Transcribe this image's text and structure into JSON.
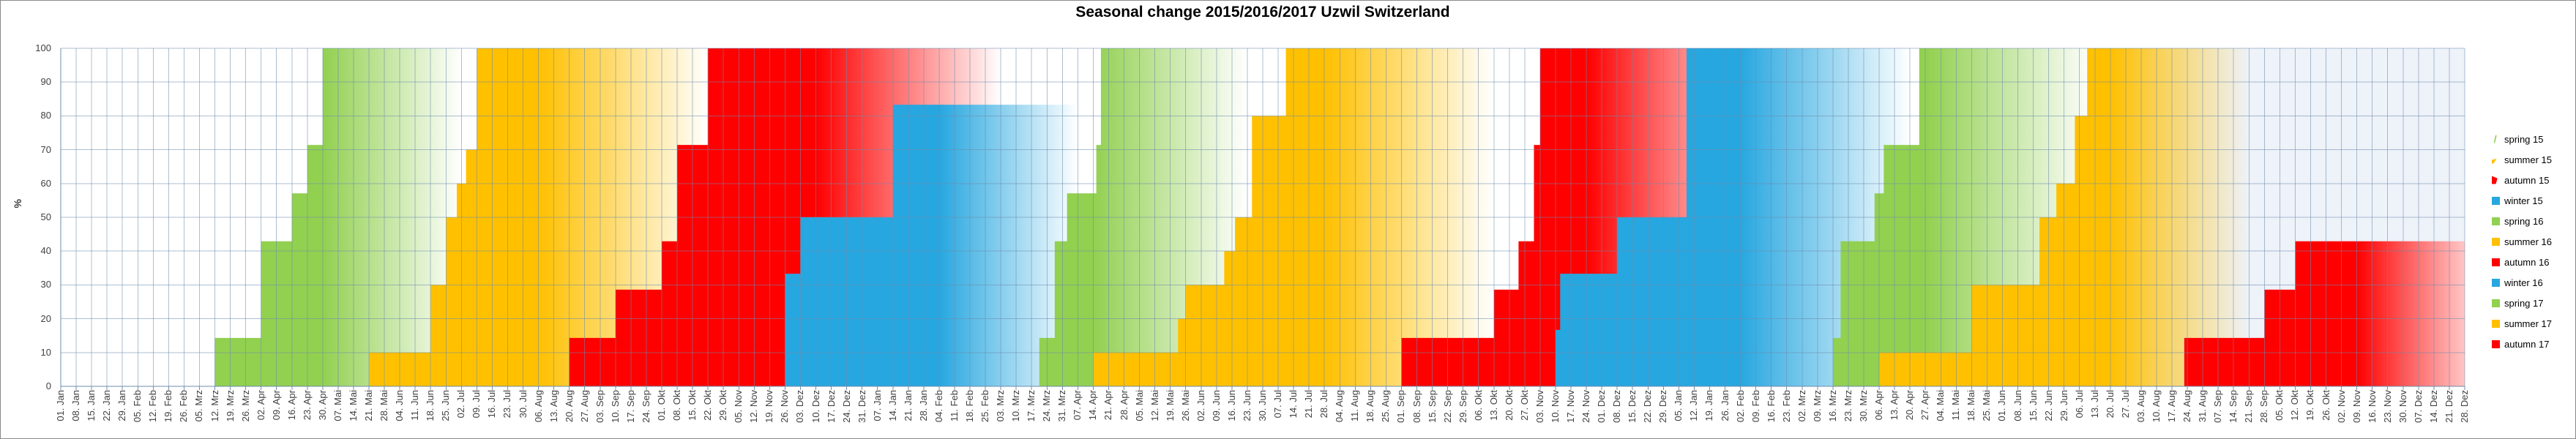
{
  "title": "Seasonal change 2015/2016/2017 Uzwil Switzerland",
  "y_axis": {
    "label": "%",
    "ticks": [
      0,
      10,
      20,
      30,
      40,
      50,
      60,
      70,
      80,
      90,
      100
    ]
  },
  "legend": {
    "items": [
      "spring 15",
      "summer 15",
      "autumn 15",
      "winter 15",
      "spring 16",
      "summer 16",
      "autumn 16",
      "winter 16",
      "spring 17",
      "summer 17",
      "autumn 17"
    ]
  },
  "colors": {
    "spring": "#92D050",
    "summer": "#FFC000",
    "autumn": "#FF0000",
    "winter": "#27A7E0",
    "gridline": "rgba(108,138,172,0.55)",
    "axis": "rgba(108,138,172,0.95)",
    "text": "#3f3f3f",
    "frame": "#8a8a8a"
  },
  "chart_data": {
    "type": "area",
    "title": "Seasonal change 2015/2016/2017 Uzwil Switzerland",
    "xlabel": "",
    "ylabel": "%",
    "ylim": [
      0,
      100
    ],
    "ytick_step": 10,
    "grid": "on",
    "legend_position": "right",
    "x_note": "weekly categories, 01.Jan.2015 - 28.Dez.2017; each season series rises in steps from 0 to its max % and its fill fades from solid colour to white over the following weeks; later seasons are painted over earlier ones",
    "x_labels": [
      "01. Jan",
      "08. Jan",
      "15. Jan",
      "22. Jan",
      "29. Jan",
      "05. Feb",
      "12. Feb",
      "19. Feb",
      "26. Feb",
      "05. Mrz",
      "12. Mrz",
      "19. Mrz",
      "26. Mrz",
      "02. Apr",
      "09. Apr",
      "16. Apr",
      "23. Apr",
      "30. Apr",
      "07. Mai",
      "14. Mai",
      "21. Mai",
      "28. Mai",
      "04. Jun",
      "11. Jun",
      "18. Jun",
      "25. Jun",
      "02. Jul",
      "09. Jul",
      "16. Jul",
      "23. Jul",
      "30. Jul",
      "06. Aug",
      "13. Aug",
      "20. Aug",
      "27. Aug",
      "03. Sep",
      "10. Sep",
      "17. Sep",
      "24. Sep",
      "01. Okt",
      "08. Okt",
      "15. Okt",
      "22. Okt",
      "29. Okt",
      "05. Nov",
      "12. Nov",
      "19. Nov",
      "26. Nov",
      "03. Dez",
      "10. Dez",
      "17. Dez",
      "24. Dez",
      "31. Dez",
      "07. Jan",
      "14. Jan",
      "21. Jan",
      "28. Jan",
      "04. Feb",
      "11. Feb",
      "18. Feb",
      "25. Feb",
      "03. Mrz",
      "10. Mrz",
      "17. Mrz",
      "24. Mrz",
      "31. Mrz",
      "07. Apr",
      "14. Apr",
      "21. Apr",
      "28. Apr",
      "05. Mai",
      "12. Mai",
      "19. Mai",
      "26. Mai",
      "02. Jun",
      "09. Jun",
      "16. Jun",
      "23. Jun",
      "30. Jun",
      "07. Jul",
      "14. Jul",
      "21. Jul",
      "28. Jul",
      "04. Aug",
      "11. Aug",
      "18. Aug",
      "25. Aug",
      "01. Sep",
      "08. Sep",
      "15. Sep",
      "22. Sep",
      "29. Sep",
      "06. Okt",
      "13. Okt",
      "20. Okt",
      "27. Okt",
      "03. Nov",
      "10. Nov",
      "17. Nov",
      "24. Nov",
      "01. Dez",
      "08. Dez",
      "15. Dez",
      "22. Dez",
      "29. Dez",
      "05. Jan",
      "12. Jan",
      "19. Jan",
      "26. Jan",
      "02. Feb",
      "09. Feb",
      "16. Feb",
      "23. Feb",
      "02. Mrz",
      "09. Mrz",
      "16. Mrz",
      "23. Mrz",
      "30. Mrz",
      "06. Apr",
      "13. Apr",
      "20. Apr",
      "27. Apr",
      "04. Mai",
      "11. Mai",
      "18. Mai",
      "25. Mai",
      "01. Jun",
      "08. Jun",
      "15. Jun",
      "22. Jun",
      "29. Jun",
      "06. Jul",
      "13. Jul",
      "20. Jul",
      "27. Jul",
      "03. Aug",
      "10. Aug",
      "17. Aug",
      "24. Aug",
      "31. Aug",
      "07. Sep",
      "14. Sep",
      "21. Sep",
      "28. Sep",
      "05. Okt",
      "12. Okt",
      "19. Okt",
      "26. Okt",
      "02. Nov",
      "09. Nov",
      "16. Nov",
      "23. Nov",
      "30. Nov",
      "07. Dez",
      "14. Dez",
      "21. Dez",
      "28. Dez"
    ],
    "series": [
      {
        "name": "spring 15",
        "color": "#92D050",
        "fade_weeks": [
          17,
          26
        ],
        "steps_week_pct": [
          [
            10,
            14.3
          ],
          [
            13,
            42.9
          ],
          [
            15,
            57.1
          ],
          [
            16,
            71.4
          ],
          [
            17,
            100
          ]
        ]
      },
      {
        "name": "summer 15",
        "color": "#FFC000",
        "fade_weeks": [
          31,
          42
        ],
        "steps_week_pct": [
          [
            20,
            10
          ],
          [
            24,
            30
          ],
          [
            25,
            50
          ],
          [
            25.7,
            60
          ],
          [
            26.3,
            70
          ],
          [
            27,
            100
          ]
        ]
      },
      {
        "name": "autumn 15",
        "color": "#FF0000",
        "fade_weeks": [
          49,
          61
        ],
        "steps_week_pct": [
          [
            33,
            14.3
          ],
          [
            36,
            28.6
          ],
          [
            39,
            42.9
          ],
          [
            40,
            71.4
          ],
          [
            42,
            100
          ]
        ]
      },
      {
        "name": "winter 15",
        "color": "#27A7E0",
        "fade_weeks": [
          57,
          66
        ],
        "steps_week_pct": [
          [
            47,
            33.3
          ],
          [
            48,
            50
          ],
          [
            54,
            83.3
          ]
        ]
      },
      {
        "name": "spring 16",
        "color": "#92D050",
        "fade_weeks": [
          67,
          77
        ],
        "steps_week_pct": [
          [
            63.5,
            14.3
          ],
          [
            64.5,
            42.9
          ],
          [
            65.3,
            57.1
          ],
          [
            67.2,
            71.4
          ],
          [
            67.5,
            100
          ]
        ]
      },
      {
        "name": "summer 16",
        "color": "#FFC000",
        "fade_weeks": [
          82,
          93
        ],
        "steps_week_pct": [
          [
            67,
            10
          ],
          [
            72.5,
            20
          ],
          [
            73,
            30
          ],
          [
            75.5,
            40
          ],
          [
            76.2,
            50
          ],
          [
            77.3,
            80
          ],
          [
            79.5,
            100
          ]
        ]
      },
      {
        "name": "autumn 16",
        "color": "#FF0000",
        "fade_weeks": [
          99,
          111
        ],
        "steps_week_pct": [
          [
            87,
            14.3
          ],
          [
            93,
            28.6
          ],
          [
            94.6,
            42.9
          ],
          [
            95.6,
            71.4
          ],
          [
            96,
            100
          ]
        ]
      },
      {
        "name": "winter 16",
        "color": "#27A7E0",
        "fade_weeks": [
          109,
          120
        ],
        "steps_week_pct": [
          [
            97,
            16.7
          ],
          [
            97.3,
            33.3
          ],
          [
            101,
            50
          ],
          [
            105.5,
            100
          ]
        ]
      },
      {
        "name": "spring 17",
        "color": "#92D050",
        "fade_weeks": [
          121,
          132
        ],
        "steps_week_pct": [
          [
            115,
            14.3
          ],
          [
            115.5,
            42.9
          ],
          [
            117.7,
            57.1
          ],
          [
            118.3,
            71.4
          ],
          [
            120.6,
            100
          ]
        ]
      },
      {
        "name": "summer 17",
        "color": "#FFC000",
        "fade_weeks": [
          133,
          142
        ],
        "fade_end_color": "#eef2f9",
        "steps_week_pct": [
          [
            118,
            10
          ],
          [
            124,
            30
          ],
          [
            128.4,
            50
          ],
          [
            129.5,
            60
          ],
          [
            130.7,
            80
          ],
          [
            131.5,
            100
          ]
        ]
      },
      {
        "name": "autumn 17",
        "color": "#FF0000",
        "fade_weeks": [
          149,
          158
        ],
        "steps_week_pct": [
          [
            137.8,
            14.3
          ],
          [
            143,
            28.6
          ],
          [
            145,
            42.9
          ]
        ]
      }
    ]
  }
}
